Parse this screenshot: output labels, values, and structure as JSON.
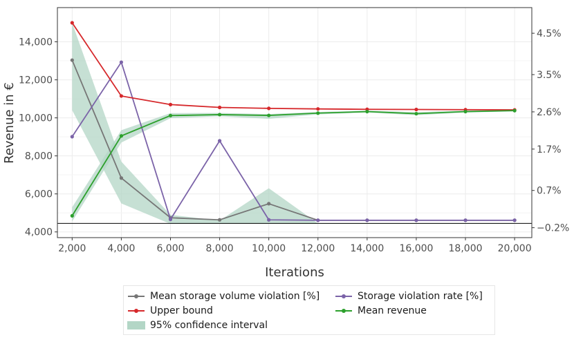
{
  "chart_data": {
    "type": "line",
    "x": [
      2000,
      4000,
      6000,
      8000,
      10000,
      12000,
      14000,
      16000,
      18000,
      20000
    ],
    "xlabel": "Iterations",
    "ylabel": "Revenue in €",
    "x_ticks": [
      "2,000",
      "4,000",
      "6,000",
      "8,000",
      "10,000",
      "12,000",
      "14,000",
      "16,000",
      "18,000",
      "20,000"
    ],
    "y_ticks": [
      "4,000",
      "6,000",
      "8,000",
      "10,000",
      "12,000",
      "14,000"
    ],
    "y_tick_values": [
      4000,
      6000,
      8000,
      10000,
      12000,
      14000
    ],
    "y2_ticks": [
      "−0.2%",
      "0.7%",
      "1.7%",
      "2.6%",
      "3.5%",
      "4.5%"
    ],
    "y2_tick_values": [
      -0.2,
      0.7,
      1.7,
      2.6,
      3.5,
      4.5
    ],
    "xlim": [
      1400,
      20700
    ],
    "ylim": [
      3700,
      15800
    ],
    "y2lim": [
      -0.44,
      5.12
    ],
    "grid": true,
    "reference_line_y": 4450,
    "legend_position": "bottom",
    "series": [
      {
        "name": "Mean storage volume violation [%]",
        "axis": "right",
        "color": "#767676",
        "values": [
          3.85,
          1.0,
          0.04,
          -0.01,
          0.38,
          -0.02,
          -0.02,
          -0.02,
          -0.02,
          -0.02
        ]
      },
      {
        "name": "Storage violation rate [%]",
        "axis": "right",
        "color": "#7b63a8",
        "values": [
          2.0,
          3.8,
          0.0,
          1.9,
          -0.01,
          -0.02,
          -0.02,
          -0.02,
          -0.02,
          -0.02
        ]
      },
      {
        "name": "Upper bound",
        "axis": "left",
        "color": "#d6282b",
        "values": [
          15000,
          11150,
          10700,
          10550,
          10500,
          10470,
          10450,
          10440,
          10430,
          10420
        ]
      },
      {
        "name": "Mean revenue",
        "axis": "left",
        "color": "#2ca02c",
        "values": [
          4850,
          9050,
          10120,
          10170,
          10130,
          10250,
          10330,
          10220,
          10330,
          10380
        ]
      }
    ],
    "confidence_interval": {
      "name": "95% confidence interval",
      "color": "#b3d6c6",
      "lower": [
        4550,
        5500,
        4420,
        4420,
        4420,
        4420,
        4420,
        4420,
        4420,
        4420
      ],
      "upper": [
        15000,
        9350,
        10250,
        10260,
        10200,
        10310,
        10380,
        10300,
        10380,
        10420
      ],
      "lower_lead": [
        4550,
        8700,
        9980,
        10080,
        9950,
        10180,
        10280,
        10140,
        10280,
        10340
      ],
      "upper_lead": [
        5300,
        9350,
        10250,
        10260,
        10200,
        10310,
        10380,
        10300,
        10380,
        10420
      ],
      "violation_upper": [
        15000,
        7700,
        4900,
        4600,
        6300,
        4450,
        4450,
        4450,
        4450,
        4450
      ],
      "violation_lower": [
        10400,
        5500,
        4420,
        4420,
        4420,
        4420,
        4420,
        4420,
        4420,
        4420
      ]
    }
  },
  "legend": {
    "items": [
      {
        "label": "Mean storage volume violation [%]",
        "kind": "line",
        "color": "#767676"
      },
      {
        "label": "Storage violation rate [%]",
        "kind": "line",
        "color": "#7b63a8"
      },
      {
        "label": "Upper bound",
        "kind": "line",
        "color": "#d6282b"
      },
      {
        "label": "Mean revenue",
        "kind": "line",
        "color": "#2ca02c"
      },
      {
        "label": "95% confidence interval",
        "kind": "band",
        "color": "#b3d6c6"
      }
    ]
  }
}
